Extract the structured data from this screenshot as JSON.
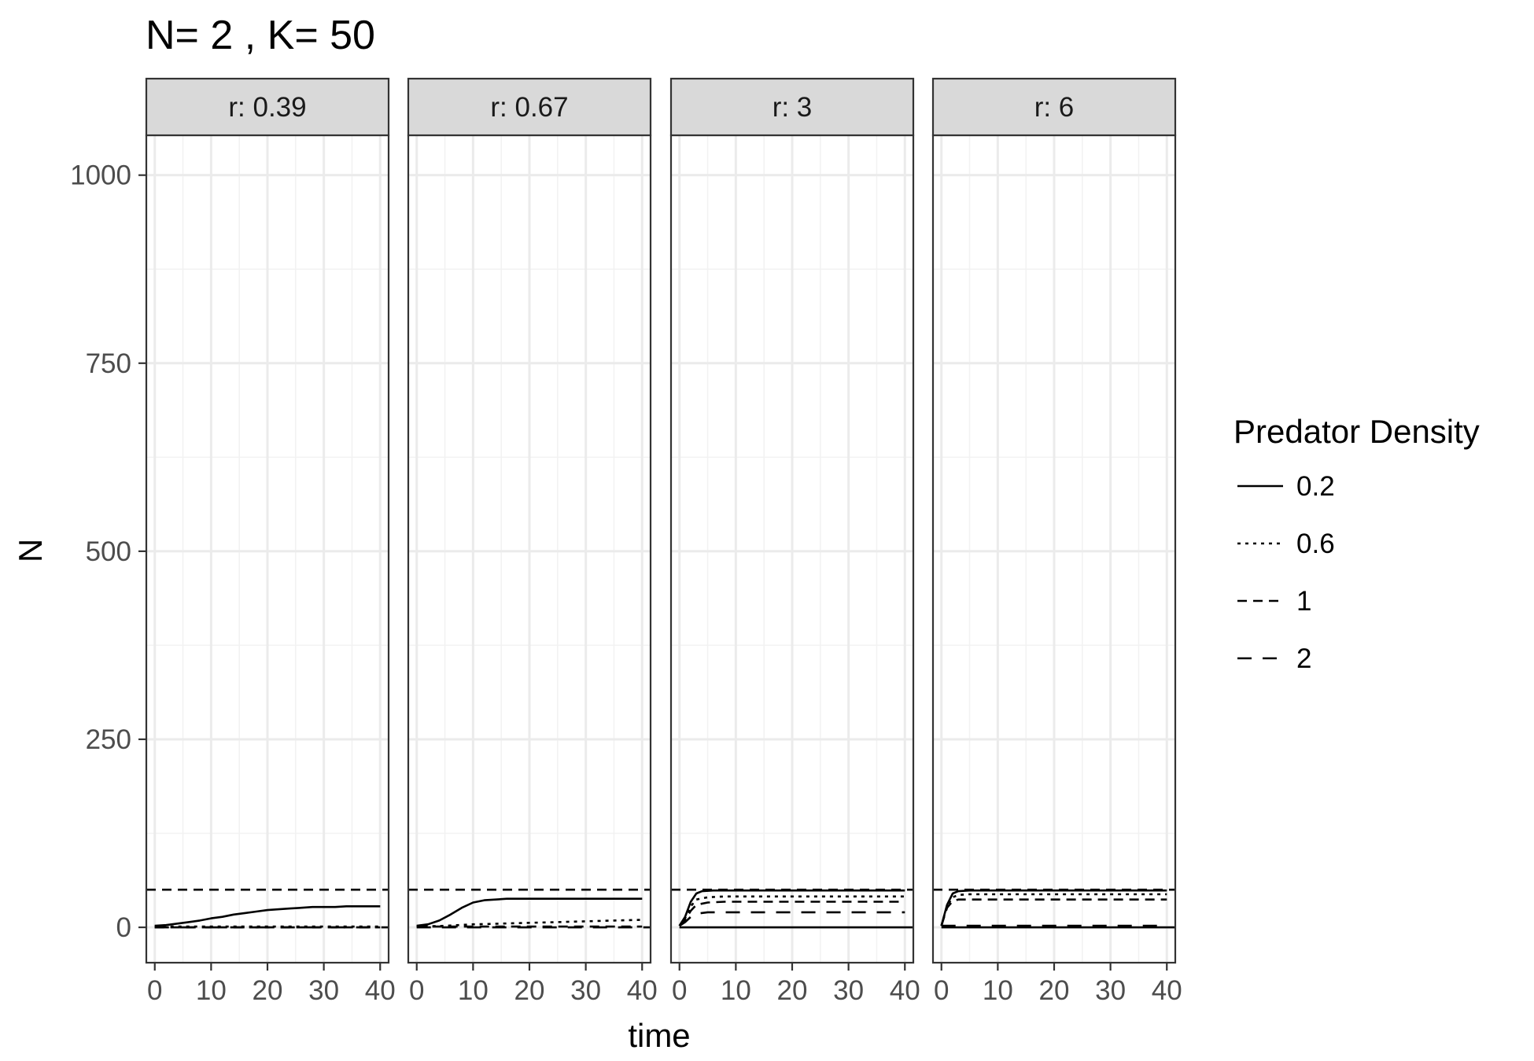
{
  "chart_data": {
    "type": "line",
    "title": "N= 2 , K= 50",
    "xlabel": "time",
    "ylabel": "N",
    "xlim": [
      -1.5,
      41.5
    ],
    "ylim": [
      -47,
      1053
    ],
    "x_ticks": [
      0,
      10,
      20,
      30,
      40
    ],
    "y_ticks": [
      0,
      250,
      500,
      750,
      1000
    ],
    "grid": true,
    "legend": {
      "title": "Predator Density",
      "position": "right",
      "entries": [
        {
          "label": "0.2",
          "dash": "solid"
        },
        {
          "label": "0.6",
          "dash": "dotted"
        },
        {
          "label": "1",
          "dash": "dashed"
        },
        {
          "label": "2",
          "dash": "longdash"
        }
      ]
    },
    "panels": [
      {
        "strip": "r: 0.39",
        "reference_line": {
          "y": 50,
          "dash": "dashed",
          "x": [
            -1.5,
            41.5
          ]
        },
        "series": [
          {
            "legend": "0.2",
            "x": [
              0,
              2,
              4,
              6,
              8,
              10,
              12,
              14,
              16,
              18,
              20,
              22,
              24,
              26,
              28,
              30,
              32,
              34,
              36,
              38,
              40
            ],
            "y": [
              2,
              3,
              5,
              7,
              9,
              12,
              14,
              17,
              19,
              21,
              23,
              24,
              25,
              26,
              27,
              27,
              27,
              28,
              28,
              28,
              28
            ]
          },
          {
            "legend": "0.6",
            "x": [
              0,
              40
            ],
            "y": [
              1,
              1
            ]
          },
          {
            "legend": "1",
            "x": [
              0,
              40
            ],
            "y": [
              0,
              0
            ]
          },
          {
            "legend": "2",
            "x": [
              0,
              41.5
            ],
            "y": [
              0,
              0
            ]
          }
        ]
      },
      {
        "strip": "r: 0.67",
        "reference_line": {
          "y": 50,
          "dash": "dashed",
          "x": [
            -1.5,
            41.5
          ]
        },
        "series": [
          {
            "legend": "0.2",
            "x": [
              0,
              2,
              4,
              6,
              8,
              10,
              12,
              14,
              16,
              20,
              25,
              30,
              35,
              40
            ],
            "y": [
              2,
              4,
              9,
              17,
              26,
              33,
              36,
              37,
              38,
              38,
              38,
              38,
              38,
              38
            ]
          },
          {
            "legend": "0.6",
            "x": [
              0,
              5,
              10,
              15,
              20,
              25,
              30,
              35,
              40
            ],
            "y": [
              1,
              2,
              4,
              5,
              6,
              7,
              8,
              9,
              10
            ]
          },
          {
            "legend": "1",
            "x": [
              0,
              40
            ],
            "y": [
              1,
              1
            ]
          },
          {
            "legend": "2",
            "x": [
              0,
              41.5
            ],
            "y": [
              0,
              0
            ]
          }
        ]
      },
      {
        "strip": "r: 3",
        "reference_line": {
          "y": 50,
          "dash": "dashed",
          "x": [
            -1.5,
            41.5
          ]
        },
        "series": [
          {
            "legend": "0.2",
            "x": [
              0,
              1,
              2,
              3,
              4,
              6,
              10,
              20,
              30,
              40
            ],
            "y": [
              2,
              14,
              34,
              45,
              48,
              49,
              49,
              49,
              49,
              49
            ]
          },
          {
            "legend": "0.6",
            "x": [
              0,
              1,
              2,
              3,
              5,
              8,
              15,
              25,
              40
            ],
            "y": [
              2,
              12,
              28,
              37,
              40,
              41,
              41,
              41,
              41
            ]
          },
          {
            "legend": "1",
            "x": [
              0,
              1,
              2,
              3,
              5,
              8,
              15,
              25,
              40
            ],
            "y": [
              2,
              10,
              22,
              30,
              33,
              34,
              34,
              34,
              34
            ]
          },
          {
            "legend": "2",
            "x": [
              0,
              1,
              2,
              3,
              5,
              8,
              15,
              25,
              40
            ],
            "y": [
              2,
              7,
              14,
              18,
              20,
              20,
              20,
              20,
              20
            ]
          },
          {
            "legend": "0.2",
            "x": [
              0,
              41.5
            ],
            "y": [
              0,
              0
            ]
          }
        ]
      },
      {
        "strip": "r: 6",
        "reference_line": {
          "y": 50,
          "dash": "dashed",
          "x": [
            -1.5,
            41.5
          ]
        },
        "series": [
          {
            "legend": "0.2",
            "x": [
              0,
              1,
              2,
              3,
              5,
              10,
              20,
              30,
              40
            ],
            "y": [
              2,
              30,
              45,
              48,
              49,
              49,
              49,
              49,
              49
            ]
          },
          {
            "legend": "0.6",
            "x": [
              0,
              1,
              2,
              3,
              5,
              10,
              20,
              30,
              40
            ],
            "y": [
              2,
              28,
              40,
              43,
              44,
              44,
              44,
              44,
              44
            ]
          },
          {
            "legend": "1",
            "x": [
              0,
              1,
              2,
              3,
              5,
              10,
              20,
              30,
              40
            ],
            "y": [
              2,
              26,
              35,
              37,
              37,
              37,
              37,
              37,
              37
            ]
          },
          {
            "legend": "2",
            "x": [
              0,
              1,
              2,
              4,
              6,
              10,
              20,
              30,
              40
            ],
            "y": [
              2,
              2,
              2,
              2,
              2,
              2,
              2,
              2,
              2
            ]
          },
          {
            "legend": "0.2",
            "x": [
              0,
              41.5
            ],
            "y": [
              0,
              0
            ]
          }
        ]
      }
    ]
  }
}
